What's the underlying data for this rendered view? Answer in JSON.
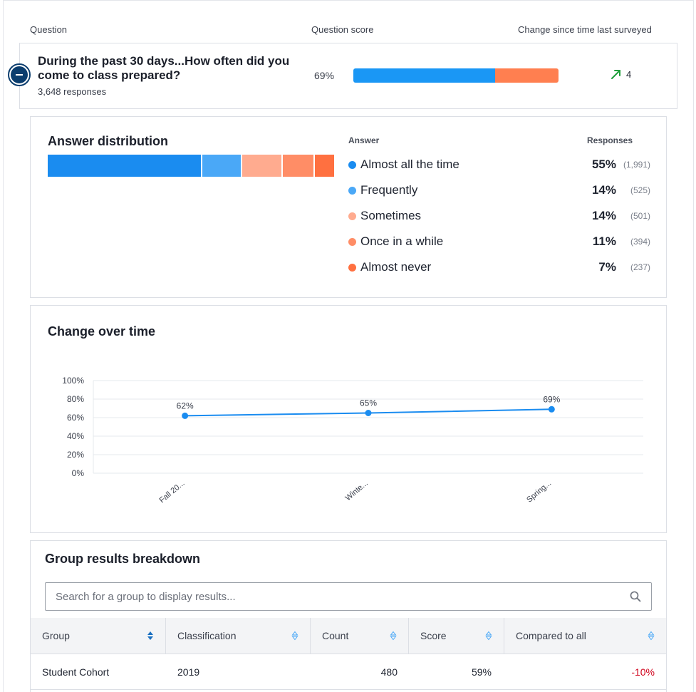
{
  "columns": {
    "question": "Question",
    "score": "Question score",
    "change": "Change since time last surveyed"
  },
  "question": {
    "title": "During the past 30 days...How often did you come to class prepared?",
    "responses": "3,648 responses",
    "score_label": "69%",
    "score_value": 69,
    "change_value": "4"
  },
  "distribution": {
    "title": "Answer distribution",
    "answer_header": "Answer",
    "responses_header": "Responses",
    "answers": [
      {
        "label": "Almost all the time",
        "pct": "55%",
        "count": "(1,991)",
        "value": 55,
        "color": "#1a8cf0"
      },
      {
        "label": "Frequently",
        "pct": "14%",
        "count": "(525)",
        "value": 14,
        "color": "#4aa8f7"
      },
      {
        "label": "Sometimes",
        "pct": "14%",
        "count": "(501)",
        "value": 14,
        "color": "#ffab8f"
      },
      {
        "label": "Once in a while",
        "pct": "11%",
        "count": "(394)",
        "value": 11,
        "color": "#ff8d66"
      },
      {
        "label": "Almost never",
        "pct": "7%",
        "count": "(237)",
        "value": 7,
        "color": "#ff7040"
      }
    ]
  },
  "change_over_time": {
    "title": "Change over time"
  },
  "chart_data": {
    "type": "line",
    "title": "Change over time",
    "categories": [
      "Fall 20...",
      "Winte...",
      "Spring..."
    ],
    "series": [
      {
        "name": "Question score",
        "values": [
          62,
          65,
          69
        ]
      }
    ],
    "data_labels": [
      "62%",
      "65%",
      "69%"
    ],
    "y_ticks": [
      "100%",
      "80%",
      "60%",
      "40%",
      "20%",
      "0%"
    ],
    "ylim": [
      0,
      100
    ],
    "line_color": "#1a8cf0"
  },
  "group": {
    "title": "Group results breakdown",
    "search_placeholder": "Search for a group to display results...",
    "headers": [
      "Group",
      "Classification",
      "Count",
      "Score",
      "Compared to all"
    ],
    "rows": [
      {
        "group": "Student Cohort",
        "classification": "2019",
        "count": "480",
        "score": "59%",
        "compared": "-10%"
      }
    ]
  },
  "colors": {
    "negative": "#d0021b",
    "positive": "#1e9e3a"
  }
}
